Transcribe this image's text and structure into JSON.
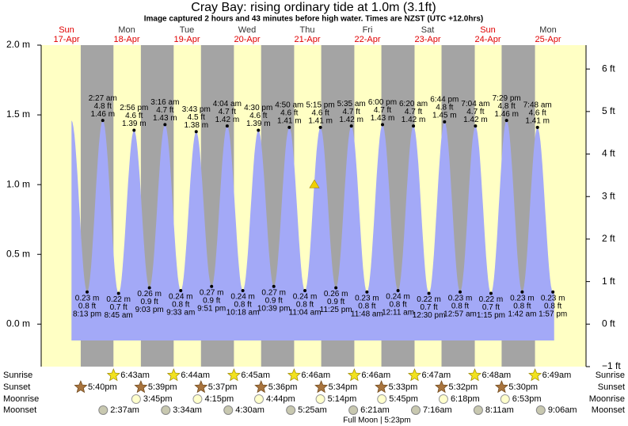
{
  "chart_data": {
    "type": "area",
    "title": "Cray Bay: rising  ordinary tide at 1.0m (3.1ft)",
    "subtitle": "Image captured 2 hours and 43 minutes before high water. Times are NZST (UTC +12.0hrs)",
    "color": "#a3a9f7",
    "current_level_m": 1.0,
    "ylim": [
      -0.3048,
      2.0
    ],
    "yticks": [
      {
        "value": 2.0,
        "label": "2.0 m"
      },
      {
        "value": 1.5,
        "label": "1.5 m"
      },
      {
        "value": 1.0,
        "label": "1.0 m"
      },
      {
        "value": 0.5,
        "label": "0.5 m"
      },
      {
        "value": 0.0,
        "label": "0.0 m"
      }
    ],
    "y2lim": [
      -1,
      6.5617
    ],
    "y2ticks": [
      {
        "value": 6,
        "label": "6 ft"
      },
      {
        "value": 5,
        "label": "5 ft"
      },
      {
        "value": 4,
        "label": "4 ft"
      },
      {
        "value": 3,
        "label": "3 ft"
      },
      {
        "value": 2,
        "label": "2 ft"
      },
      {
        "value": 1,
        "label": "1 ft"
      },
      {
        "value": 0,
        "label": "0 ft"
      },
      {
        "value": -1,
        "label": "−1 ft"
      }
    ],
    "row_labels": {
      "sunrise": "Sunrise",
      "sunset": "Sunset",
      "moonrise": "Moonrise",
      "moonset": "Moonset"
    },
    "moon_phase": "Full Moon | 5:23pm",
    "days": [
      {
        "weekday": "Sun",
        "date": "17-Apr",
        "sunrise": null,
        "sunset": "5:40pm",
        "moonrise": null,
        "moonset": null,
        "tides": [
          {
            "time": "8:13 pm",
            "m": 0.23,
            "m_label": "0.23 m",
            "ft": 0.8,
            "ft_label": "0.8 ft"
          }
        ]
      },
      {
        "weekday": "Mon",
        "date": "18-Apr",
        "sunrise": "6:43am",
        "sunset": "5:39pm",
        "moonrise": "3:45pm",
        "moonset": "2:37am",
        "tides": [
          {
            "time": "2:27 am",
            "m": 1.46,
            "m_label": "1.46 m",
            "ft": 4.8,
            "ft_label": "4.8 ft"
          },
          {
            "time": "8:45 am",
            "m": 0.22,
            "m_label": "0.22 m",
            "ft": 0.7,
            "ft_label": "0.7 ft"
          },
          {
            "time": "2:56 pm",
            "m": 1.39,
            "m_label": "1.39 m",
            "ft": 4.6,
            "ft_label": "4.6 ft"
          },
          {
            "time": "9:03 pm",
            "m": 0.26,
            "m_label": "0.26 m",
            "ft": 0.9,
            "ft_label": "0.9 ft"
          }
        ]
      },
      {
        "weekday": "Tue",
        "date": "19-Apr",
        "sunrise": "6:44am",
        "sunset": "5:37pm",
        "moonrise": "4:15pm",
        "moonset": "3:34am",
        "tides": [
          {
            "time": "3:16 am",
            "m": 1.43,
            "m_label": "1.43 m",
            "ft": 4.7,
            "ft_label": "4.7 ft"
          },
          {
            "time": "9:33 am",
            "m": 0.24,
            "m_label": "0.24 m",
            "ft": 0.8,
            "ft_label": "0.8 ft"
          },
          {
            "time": "3:43 pm",
            "m": 1.38,
            "m_label": "1.38 m",
            "ft": 4.5,
            "ft_label": "4.5 ft"
          },
          {
            "time": "9:51 pm",
            "m": 0.27,
            "m_label": "0.27 m",
            "ft": 0.9,
            "ft_label": "0.9 ft"
          }
        ]
      },
      {
        "weekday": "Wed",
        "date": "20-Apr",
        "sunrise": "6:45am",
        "sunset": "5:36pm",
        "moonrise": "4:44pm",
        "moonset": "4:30am",
        "tides": [
          {
            "time": "4:04 am",
            "m": 1.42,
            "m_label": "1.42 m",
            "ft": 4.7,
            "ft_label": "4.7 ft"
          },
          {
            "time": "10:18 am",
            "m": 0.24,
            "m_label": "0.24 m",
            "ft": 0.8,
            "ft_label": "0.8 ft"
          },
          {
            "time": "4:30 pm",
            "m": 1.39,
            "m_label": "1.39 m",
            "ft": 4.6,
            "ft_label": "4.6 ft"
          },
          {
            "time": "10:39 pm",
            "m": 0.27,
            "m_label": "0.27 m",
            "ft": 0.9,
            "ft_label": "0.9 ft"
          }
        ]
      },
      {
        "weekday": "Thu",
        "date": "21-Apr",
        "sunrise": "6:46am",
        "sunset": "5:34pm",
        "moonrise": "5:14pm",
        "moonset": "5:25am",
        "tides": [
          {
            "time": "4:50 am",
            "m": 1.41,
            "m_label": "1.41 m",
            "ft": 4.6,
            "ft_label": "4.6 ft"
          },
          {
            "time": "11:04 am",
            "m": 0.24,
            "m_label": "0.24 m",
            "ft": 0.8,
            "ft_label": "0.8 ft"
          },
          {
            "time": "5:15 pm",
            "m": 1.41,
            "m_label": "1.41 m",
            "ft": 4.6,
            "ft_label": "4.6 ft"
          },
          {
            "time": "11:25 pm",
            "m": 0.26,
            "m_label": "0.26 m",
            "ft": 0.9,
            "ft_label": "0.9 ft"
          }
        ]
      },
      {
        "weekday": "Fri",
        "date": "22-Apr",
        "sunrise": "6:46am",
        "sunset": "5:33pm",
        "moonrise": "5:45pm",
        "moonset": "6:21am",
        "tides": [
          {
            "time": "5:35 am",
            "m": 1.42,
            "m_label": "1.42 m",
            "ft": 4.7,
            "ft_label": "4.7 ft"
          },
          {
            "time": "11:48 am",
            "m": 0.23,
            "m_label": "0.23 m",
            "ft": 0.8,
            "ft_label": "0.8 ft"
          },
          {
            "time": "6:00 pm",
            "m": 1.43,
            "m_label": "1.43 m",
            "ft": 4.7,
            "ft_label": "4.7 ft"
          }
        ]
      },
      {
        "weekday": "Sat",
        "date": "23-Apr",
        "sunrise": "6:47am",
        "sunset": "5:32pm",
        "moonrise": "6:18pm",
        "moonset": "7:16am",
        "tides": [
          {
            "time": "12:11 am",
            "m": 0.24,
            "m_label": "0.24 m",
            "ft": 0.8,
            "ft_label": "0.8 ft"
          },
          {
            "time": "6:20 am",
            "m": 1.42,
            "m_label": "1.42 m",
            "ft": 4.7,
            "ft_label": "4.7 ft"
          },
          {
            "time": "12:30 pm",
            "m": 0.22,
            "m_label": "0.22 m",
            "ft": 0.7,
            "ft_label": "0.7 ft"
          },
          {
            "time": "6:44 pm",
            "m": 1.45,
            "m_label": "1.45 m",
            "ft": 4.8,
            "ft_label": "4.8 ft"
          }
        ]
      },
      {
        "weekday": "Sun",
        "date": "24-Apr",
        "sunrise": "6:48am",
        "sunset": "5:30pm",
        "moonrise": "6:53pm",
        "moonset": "8:11am",
        "tides": [
          {
            "time": "12:57 am",
            "m": 0.23,
            "m_label": "0.23 m",
            "ft": 0.8,
            "ft_label": "0.8 ft"
          },
          {
            "time": "7:04 am",
            "m": 1.42,
            "m_label": "1.42 m",
            "ft": 4.7,
            "ft_label": "4.7 ft"
          },
          {
            "time": "1:15 pm",
            "m": 0.22,
            "m_label": "0.22 m",
            "ft": 0.7,
            "ft_label": "0.7 ft"
          },
          {
            "time": "7:29 pm",
            "m": 1.46,
            "m_label": "1.46 m",
            "ft": 4.8,
            "ft_label": "4.8 ft"
          }
        ]
      },
      {
        "weekday": "Mon",
        "date": "25-Apr",
        "sunrise": "6:49am",
        "sunset": null,
        "moonrise": null,
        "moonset": "9:06am",
        "tides": [
          {
            "time": "1:42 am",
            "m": 0.23,
            "m_label": "0.23 m",
            "ft": 0.8,
            "ft_label": "0.8 ft"
          },
          {
            "time": "7:48 am",
            "m": 1.41,
            "m_label": "1.41 m",
            "ft": 4.6,
            "ft_label": "4.6 ft"
          },
          {
            "time": "1:57 pm",
            "m": 0.23,
            "m_label": "0.23 m",
            "ft": 0.8,
            "ft_label": "0.8 ft"
          }
        ]
      }
    ]
  }
}
